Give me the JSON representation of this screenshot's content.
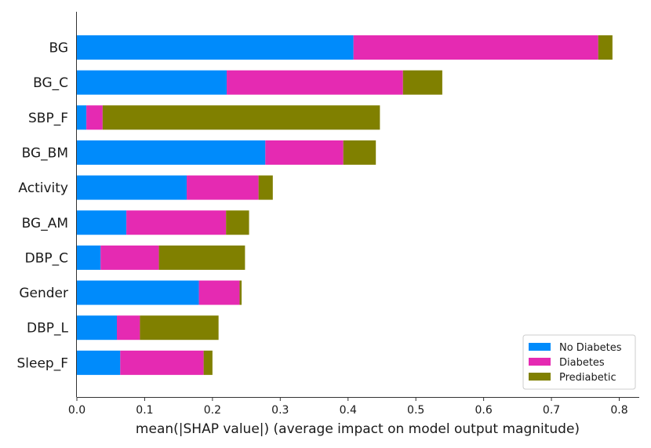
{
  "chart_data": {
    "type": "bar",
    "orientation": "horizontal",
    "stacked": true,
    "title": "",
    "xlabel": "mean(|SHAP value|) (average impact on model output magnitude)",
    "ylabel": "",
    "xlim": [
      0,
      0.82
    ],
    "xticks": [
      0.0,
      0.1,
      0.2,
      0.3,
      0.4,
      0.5,
      0.6,
      0.7,
      0.8
    ],
    "xtick_labels": [
      "0.0",
      "0.1",
      "0.2",
      "0.3",
      "0.4",
      "0.5",
      "0.6",
      "0.7",
      "0.8"
    ],
    "grid": false,
    "legend_position": "bottom-right",
    "categories": [
      "BG",
      "BG_C",
      "SBP_F",
      "BG_BM",
      "Activity",
      "BG_AM",
      "DBP_C",
      "Gender",
      "DBP_L",
      "Sleep_F"
    ],
    "series": [
      {
        "name": "No Diabetes",
        "color": "#008bfb",
        "values": [
          0.408,
          0.221,
          0.014,
          0.278,
          0.162,
          0.073,
          0.035,
          0.18,
          0.059,
          0.064
        ]
      },
      {
        "name": "Diabetes",
        "color": "#e52ab2",
        "values": [
          0.361,
          0.26,
          0.024,
          0.115,
          0.106,
          0.147,
          0.086,
          0.06,
          0.034,
          0.123
        ]
      },
      {
        "name": "Prediabetic",
        "color": "#808000",
        "values": [
          0.021,
          0.058,
          0.409,
          0.048,
          0.021,
          0.034,
          0.127,
          0.003,
          0.116,
          0.013
        ]
      }
    ]
  }
}
